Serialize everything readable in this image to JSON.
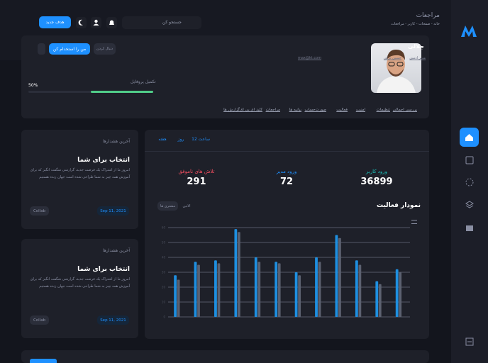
{
  "header": {
    "title": "مراجعات",
    "breadcrumb": "خانه - صفحات - کاربر - مراجعات",
    "search": "جستجو کن",
    "new_goal": "هدف جدید"
  },
  "profile": {
    "name": "جلالی",
    "links": [
      "مدیر ادمین",
      "حسین ترکی",
      "max@kt.com"
    ],
    "hire": "من را استخدام کن",
    "follow": "دنبال کردن",
    "progress": {
      "label": "تکمیل پروفایل",
      "value": 50,
      "value_label": "50%"
    },
    "tabs": [
      "بررسی اجمالی",
      "تنظیمات",
      "امنیت",
      "فعالیت",
      "صورت‌حساب",
      "بیانیه ها",
      "مراجعات",
      "کلید ای پی ای",
      "گزارش ها"
    ]
  },
  "alerts": [
    {
      "heading": "آخرین هشدارها",
      "title": "انتخاب برای شما",
      "body": "امروز ما از اشتراک یک فرصت جدید، گزارشی شگفت انگیز که برای آموزش همه چیز به شما طراحی شده است جهان زنده هستیم",
      "tag": "Collab",
      "date": "Sep 11, 2021"
    },
    {
      "heading": "آخرین هشدارها",
      "title": "انتخاب برای شما",
      "body": "امروز ما از اشتراک یک فرصت جدید، گزارشی شگفت انگیز که برای آموزش همه چیز به شما طراحی شده است جهان زنده هستیم",
      "tag": "Collab",
      "date": "Sep 11, 2021"
    }
  ],
  "activity": {
    "periods": [
      "هفته",
      "روز",
      "ساعت 12"
    ],
    "stats": [
      {
        "label": "ورود کاربر",
        "value": 36899,
        "color": "#1bc5bd"
      },
      {
        "label": "ورود مدیر",
        "value": 72,
        "color": "#1e90ff"
      },
      {
        "label": "تلاش های ناموفق",
        "value": 291,
        "color": "#f64e60"
      }
    ],
    "chart_data": {
      "type": "bar",
      "title": "نمودار فعالیت",
      "filters": [
        "مشتری ها",
        "الاتین"
      ],
      "ylim": [
        0,
        60
      ],
      "yticks": [
        0,
        10,
        20,
        30,
        40,
        50,
        60
      ],
      "grid": true,
      "series": [
        {
          "color": "#1e8fe0",
          "values": [
            28,
            37,
            38,
            59,
            40,
            37,
            30,
            40,
            55,
            38,
            24,
            32
          ]
        },
        {
          "color": "#5c6170",
          "values": [
            25,
            35,
            36,
            57,
            37,
            36,
            28,
            37,
            53,
            35,
            22,
            30
          ]
        }
      ]
    }
  }
}
